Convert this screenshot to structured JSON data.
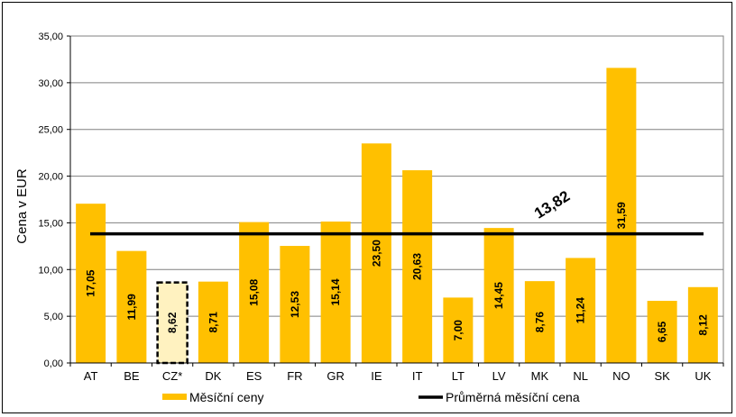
{
  "chart_data": {
    "type": "bar",
    "categories": [
      "AT",
      "BE",
      "CZ*",
      "DK",
      "ES",
      "FR",
      "GR",
      "IE",
      "IT",
      "LT",
      "LV",
      "MK",
      "NL",
      "NO",
      "SK",
      "UK"
    ],
    "series": [
      {
        "name": "Měsíční ceny",
        "values": [
          17.05,
          11.99,
          8.62,
          8.71,
          15.08,
          12.53,
          15.14,
          23.5,
          20.63,
          7.0,
          14.45,
          8.76,
          11.24,
          31.59,
          6.65,
          8.12
        ],
        "value_labels": [
          "17,05",
          "11,99",
          "8,62",
          "8,71",
          "15,08",
          "12,53",
          "15,14",
          "23,50",
          "20,63",
          "7,00",
          "14,45",
          "8,76",
          "11,24",
          "31,59",
          "6,65",
          "8,12"
        ]
      }
    ],
    "average": {
      "name": "Průměrná měsíční cena",
      "value": 13.82,
      "label": "13,82"
    },
    "highlighted_category": "CZ*",
    "ylabel": "Cena v EUR",
    "xlabel": "",
    "ylim": [
      0,
      35
    ],
    "yticks": [
      0,
      5,
      10,
      15,
      20,
      25,
      30,
      35
    ],
    "ytick_labels": [
      "0,00",
      "5,00",
      "10,00",
      "15,00",
      "20,00",
      "25,00",
      "30,00",
      "35,00"
    ],
    "grid": true,
    "legend_position": "bottom",
    "colors": {
      "bar": "#FFC000",
      "highlight_bar": "#FFF2C0",
      "average_line": "#000000",
      "grid": "#808080"
    }
  }
}
